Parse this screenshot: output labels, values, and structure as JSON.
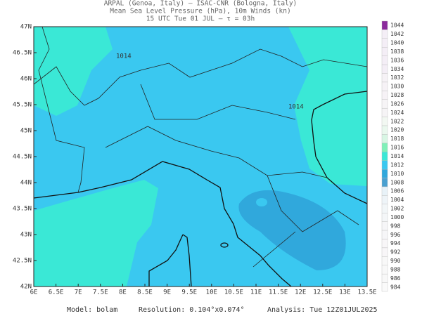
{
  "header": {
    "lines": [
      "ARPAL (Genoa, Italy)  —  ISAC-CNR (Bologna, Italy)",
      "Mean Sea Level Pressure (hPa), 10m Winds (kn)",
      "15 UTC Tue 01 JUL  —  τ = 03h"
    ]
  },
  "axes": {
    "lat_labels": [
      "47N",
      "46.5N",
      "46N",
      "45.5N",
      "45N",
      "44.5N",
      "44N",
      "43.5N",
      "43N",
      "42.5N",
      "42N"
    ],
    "lon_labels": [
      "6E",
      "6.5E",
      "7E",
      "7.5E",
      "8E",
      "8.5E",
      "9E",
      "9.5E",
      "10E",
      "10.5E",
      "11E",
      "11.5E",
      "12E",
      "12.5E",
      "13E",
      "13.5E"
    ]
  },
  "isobar_labels": [
    "1014",
    "1014"
  ],
  "colorbar": {
    "entries": [
      {
        "label": 1044,
        "color": "#8b2b9c"
      },
      {
        "label": 1042,
        "color": "#f4eef6"
      },
      {
        "label": 1040,
        "color": "#f4eef6"
      },
      {
        "label": 1038,
        "color": "#f4eef6"
      },
      {
        "label": 1036,
        "color": "#f4eef6"
      },
      {
        "label": 1034,
        "color": "#f4eef6"
      },
      {
        "label": 1032,
        "color": "#f6f2f6"
      },
      {
        "label": 1030,
        "color": "#f6f2f6"
      },
      {
        "label": 1028,
        "color": "#f6f2f6"
      },
      {
        "label": 1026,
        "color": "#f6f4f6"
      },
      {
        "label": 1024,
        "color": "#f6f4f6"
      },
      {
        "label": 1022,
        "color": "#f2f8f2"
      },
      {
        "label": 1020,
        "color": "#eaf8ee"
      },
      {
        "label": 1018,
        "color": "#d8f6e4"
      },
      {
        "label": 1016,
        "color": "#7ff0b8"
      },
      {
        "label": 1014,
        "color": "#3ae8d6"
      },
      {
        "label": 1012,
        "color": "#3ac8f0"
      },
      {
        "label": 1010,
        "color": "#30a8dc"
      },
      {
        "label": 1008,
        "color": "#4aa0d0"
      },
      {
        "label": 1006,
        "color": "#e8f2f8"
      },
      {
        "label": 1004,
        "color": "#eef4f8"
      },
      {
        "label": 1002,
        "color": "#f2f6f8"
      },
      {
        "label": 1000,
        "color": "#f4f6f8"
      },
      {
        "label": 998,
        "color": "#f6f6f8"
      },
      {
        "label": 996,
        "color": "#f6f6f8"
      },
      {
        "label": 994,
        "color": "#f8f6f8"
      },
      {
        "label": 992,
        "color": "#f8f6f8"
      },
      {
        "label": 990,
        "color": "#f8f8f8"
      },
      {
        "label": 988,
        "color": "#f8f8f8"
      },
      {
        "label": 986,
        "color": "#f8f8f8"
      },
      {
        "label": 984,
        "color": "#fafafa"
      }
    ]
  },
  "footer": {
    "model": "Model: bolam",
    "resolution": "Resolution: 0.104°x0.074°",
    "analysis": "Analysis: Tue 12Z01JUL2025"
  }
}
